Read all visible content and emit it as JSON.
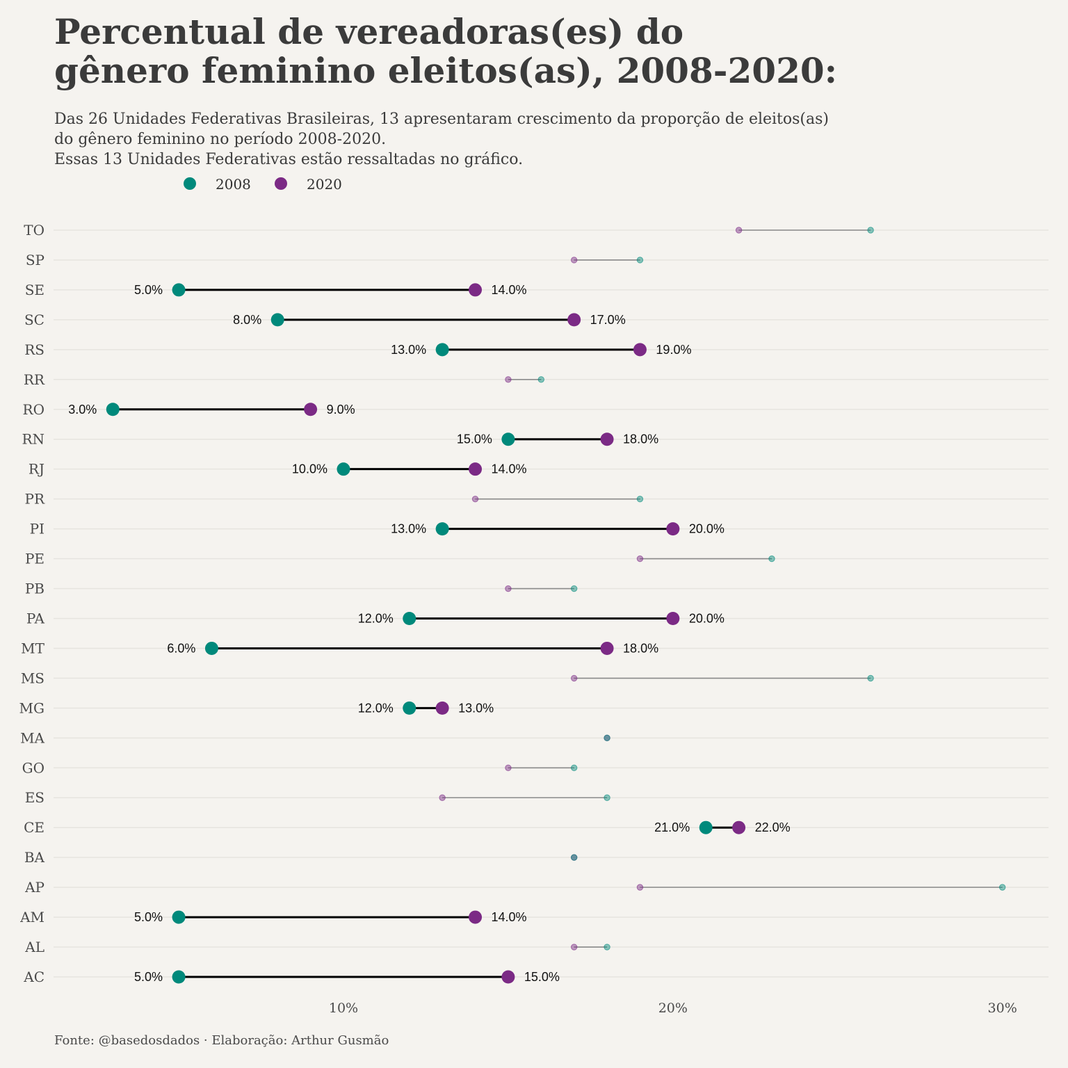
{
  "title_lines": [
    "Percentual de vereadoras(es) do",
    "gênero feminino eleitos(as), 2008-2020:"
  ],
  "subtitle_lines": [
    "Das 26 Unidades Federativas Brasileiras, 13 apresentaram crescimento da proporção de eleitos(as)",
    "do gênero feminino no período 2008-2020.",
    "Essas 13 Unidades Federativas estão ressaltadas no gráfico."
  ],
  "caption": "Fonte: @basedosdados · Elaboração: Arthur Gusmão",
  "colors": {
    "series_2008": "#00897b",
    "series_2020": "#7b2a85",
    "highlight_line": "#000000",
    "muted_line": "#8a8a8a",
    "grid": "#e6e4df"
  },
  "chart_data": {
    "type": "dumbbell",
    "x_unit": "%",
    "xlim": [
      1.2,
      31.4
    ],
    "x_ticks": [
      10,
      20,
      30
    ],
    "x_tick_labels": [
      "10%",
      "20%",
      "30%"
    ],
    "legend": {
      "placement": "top-left",
      "entries": [
        "2008",
        "2020"
      ]
    },
    "grid": true,
    "categories": [
      "TO",
      "SP",
      "SE",
      "SC",
      "RS",
      "RR",
      "RO",
      "RN",
      "RJ",
      "PR",
      "PI",
      "PE",
      "PB",
      "PA",
      "MT",
      "MS",
      "MG",
      "MA",
      "GO",
      "ES",
      "CE",
      "BA",
      "AP",
      "AM",
      "AL",
      "AC"
    ],
    "series": [
      {
        "name": "2008",
        "values": [
          26,
          19,
          5,
          8,
          13,
          16,
          3,
          15,
          10,
          19,
          13,
          23,
          17,
          12,
          6,
          26,
          12,
          18,
          17,
          18,
          21,
          17,
          30,
          5,
          18,
          5
        ]
      },
      {
        "name": "2020",
        "values": [
          22,
          17,
          14,
          17,
          19,
          15,
          9,
          18,
          14,
          14,
          20,
          19,
          15,
          20,
          18,
          17,
          13,
          18,
          15,
          13,
          22,
          17,
          19,
          14,
          17,
          15
        ]
      }
    ],
    "highlighted": [
      false,
      false,
      true,
      true,
      true,
      false,
      true,
      true,
      true,
      false,
      true,
      false,
      false,
      true,
      true,
      false,
      true,
      false,
      false,
      false,
      true,
      false,
      false,
      true,
      false,
      true
    ],
    "labels_2008": [
      "",
      "",
      "5.0%",
      "8.0%",
      "13.0%",
      "",
      "3.0%",
      "15.0%",
      "10.0%",
      "",
      "13.0%",
      "",
      "",
      "12.0%",
      "6.0%",
      "",
      "12.0%",
      "",
      "",
      "",
      "21.0%",
      "",
      "",
      "5.0%",
      "",
      "5.0%"
    ],
    "labels_2020": [
      "",
      "",
      "14.0%",
      "17.0%",
      "19.0%",
      "",
      "9.0%",
      "18.0%",
      "14.0%",
      "",
      "20.0%",
      "",
      "",
      "20.0%",
      "18.0%",
      "",
      "13.0%",
      "",
      "",
      "",
      "22.0%",
      "",
      "",
      "14.0%",
      "",
      "15.0%"
    ]
  }
}
